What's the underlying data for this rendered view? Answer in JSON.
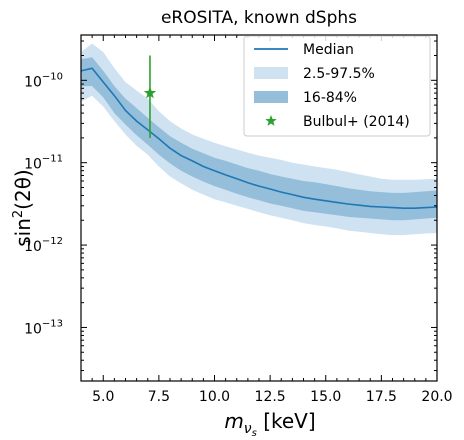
{
  "chart_data": {
    "type": "area",
    "title": "eROSITA, known dSphs",
    "xlabel_main": "m",
    "xlabel_sub": "ν",
    "xlabel_subsub": "s",
    "xlabel_unit": " [keV]",
    "ylabel_main": "sin",
    "ylabel_sup": "2",
    "ylabel_arg": "(2θ)",
    "xlim": [
      4.0,
      20.0
    ],
    "ylim_log10": [
      -13.65,
      -9.45
    ],
    "yscale": "log",
    "grid": false,
    "legend_position": "top-right",
    "x_ticks": [
      {
        "value": 5.0,
        "label": "5.0"
      },
      {
        "value": 7.5,
        "label": "7.5"
      },
      {
        "value": 10.0,
        "label": "10.0"
      },
      {
        "value": 12.5,
        "label": "12.5"
      },
      {
        "value": 15.0,
        "label": "15.0"
      },
      {
        "value": 17.5,
        "label": "17.5"
      },
      {
        "value": 20.0,
        "label": "20.0"
      }
    ],
    "y_ticks": [
      {
        "exp": -10,
        "base": "10",
        "sup": "−10"
      },
      {
        "exp": -11,
        "base": "10",
        "sup": "−11"
      },
      {
        "exp": -12,
        "base": "10",
        "sup": "−12"
      },
      {
        "exp": -13,
        "base": "10",
        "sup": "−13"
      }
    ],
    "x": [
      4.0,
      4.5,
      5.0,
      5.5,
      6.0,
      6.5,
      7.0,
      7.5,
      8.0,
      8.5,
      9.0,
      9.5,
      10.0,
      10.5,
      11.0,
      11.5,
      12.0,
      12.5,
      13.0,
      13.5,
      14.0,
      14.5,
      15.0,
      15.5,
      16.0,
      16.5,
      17.0,
      17.5,
      18.0,
      18.5,
      19.0,
      19.5,
      20.0
    ],
    "series": [
      {
        "name": "2.5-97.5%",
        "kind": "band",
        "color": "#cfe2f1",
        "upper": [
          2.2e-10,
          2.8e-10,
          2.2e-10,
          1.4e-10,
          9.5e-11,
          7.5e-11,
          6e-11,
          4.2e-11,
          3.2e-11,
          2.6e-11,
          2.2e-11,
          1.95e-11,
          1.75e-11,
          1.58e-11,
          1.45e-11,
          1.32e-11,
          1.22e-11,
          1.15e-11,
          1.08e-11,
          1e-11,
          9.5e-12,
          9e-12,
          8.6e-12,
          8.2e-12,
          7.7e-12,
          7.2e-12,
          6.8e-12,
          6.4e-12,
          6.2e-12,
          6.2e-12,
          6.2e-12,
          6.3e-12,
          6.4e-12
        ],
        "lower": [
          5.5e-11,
          6.5e-11,
          4.8e-11,
          3.2e-11,
          2.2e-11,
          1.6e-11,
          1.25e-11,
          9e-12,
          6.8e-12,
          5.6e-12,
          4.7e-12,
          4.1e-12,
          3.6e-12,
          3.3e-12,
          3e-12,
          2.75e-12,
          2.5e-12,
          2.3e-12,
          2.15e-12,
          2e-12,
          1.85e-12,
          1.75e-12,
          1.68e-12,
          1.6e-12,
          1.5e-12,
          1.45e-12,
          1.4e-12,
          1.35e-12,
          1.32e-12,
          1.32e-12,
          1.35e-12,
          1.38e-12,
          1.4e-12
        ]
      },
      {
        "name": "16-84%",
        "kind": "band",
        "color": "#95bedb",
        "upper": [
          1.8e-10,
          1.9e-10,
          1.3e-10,
          8.5e-11,
          6e-11,
          4.6e-11,
          3.5e-11,
          2.7e-11,
          2.1e-11,
          1.75e-11,
          1.48e-11,
          1.3e-11,
          1.15e-11,
          1.05e-11,
          9.5e-12,
          8.6e-12,
          8e-12,
          7.3e-12,
          6.8e-12,
          6.4e-12,
          6e-12,
          5.8e-12,
          5.5e-12,
          5.2e-12,
          4.9e-12,
          4.7e-12,
          4.5e-12,
          4.4e-12,
          4.3e-12,
          4.3e-12,
          4.4e-12,
          4.5e-12,
          4.6e-12
        ],
        "lower": [
          8.5e-11,
          8.5e-11,
          6.2e-11,
          4e-11,
          2.9e-11,
          2.15e-11,
          1.65e-11,
          1.25e-11,
          9.8e-12,
          8e-12,
          6.8e-12,
          5.9e-12,
          5.2e-12,
          4.7e-12,
          4.2e-12,
          3.8e-12,
          3.5e-12,
          3.2e-12,
          3e-12,
          2.8e-12,
          2.6e-12,
          2.5e-12,
          2.4e-12,
          2.3e-12,
          2.2e-12,
          2.15e-12,
          2.1e-12,
          2.05e-12,
          2e-12,
          2e-12,
          2.05e-12,
          2.1e-12,
          2.15e-12
        ]
      },
      {
        "name": "Median",
        "kind": "line",
        "color": "#1f77b4",
        "values": [
          1.3e-10,
          1.4e-10,
          9.5e-11,
          6.5e-11,
          4.3e-11,
          3.2e-11,
          2.5e-11,
          1.95e-11,
          1.5e-11,
          1.22e-11,
          1.05e-11,
          9e-12,
          8e-12,
          7.1e-12,
          6.4e-12,
          5.7e-12,
          5.2e-12,
          4.8e-12,
          4.4e-12,
          4.1e-12,
          3.8e-12,
          3.6e-12,
          3.45e-12,
          3.3e-12,
          3.15e-12,
          3.05e-12,
          2.95e-12,
          2.9e-12,
          2.85e-12,
          2.8e-12,
          2.8e-12,
          2.85e-12,
          2.9e-12
        ]
      },
      {
        "name": "Bulbul+ (2014)",
        "kind": "point",
        "color": "#2ca02c",
        "x": 7.1,
        "y": 7e-11,
        "y_err_low": 2e-11,
        "y_err_high": 2e-10
      }
    ],
    "legend": [
      {
        "label": "Median",
        "kind": "line",
        "color": "#1f77b4"
      },
      {
        "label": "2.5-97.5%",
        "kind": "band",
        "color": "#cfe2f1"
      },
      {
        "label": "16-84%",
        "kind": "band",
        "color": "#95bedb"
      },
      {
        "label": "Bulbul+ (2014)",
        "kind": "star",
        "color": "#2ca02c"
      }
    ]
  }
}
